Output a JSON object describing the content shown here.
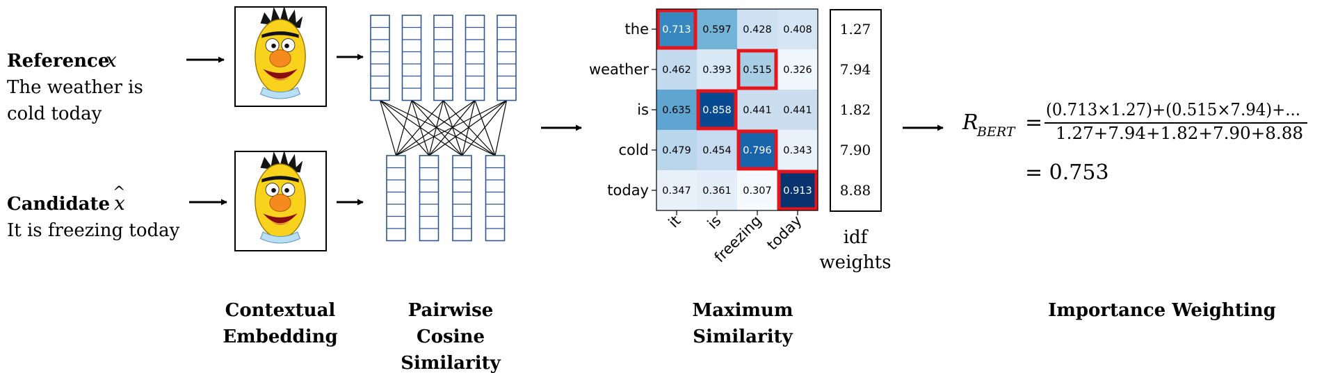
{
  "reference": {
    "heading": "Reference",
    "symbol": "x",
    "lines": [
      "The weather is",
      "cold today"
    ],
    "tokens": [
      "the",
      "weather",
      "is",
      "cold",
      "today"
    ]
  },
  "candidate": {
    "heading": "Candidate",
    "symbol": "x",
    "hat": "^",
    "lines": [
      "It is freezing today"
    ],
    "tokens": [
      "it",
      "is",
      "freezing",
      "today"
    ]
  },
  "similarity": [
    [
      0.713,
      0.597,
      0.428,
      0.408
    ],
    [
      0.462,
      0.393,
      0.515,
      0.326
    ],
    [
      0.635,
      0.858,
      0.441,
      0.441
    ],
    [
      0.479,
      0.454,
      0.796,
      0.343
    ],
    [
      0.347,
      0.361,
      0.307,
      0.913
    ]
  ],
  "max_cells": [
    [
      0,
      0
    ],
    [
      1,
      2
    ],
    [
      2,
      1
    ],
    [
      3,
      2
    ],
    [
      4,
      3
    ]
  ],
  "idf": {
    "values": [
      "1.27",
      "7.94",
      "1.82",
      "7.90",
      "8.88"
    ],
    "label_lines": [
      "idf",
      "weights"
    ]
  },
  "formula": {
    "lhs": "R",
    "lhs_sub": "BERT",
    "equals": "=",
    "numerator": "(0.713×1.27)+(0.515×7.94)+...",
    "denominator": "1.27+7.94+1.82+7.90+8.88",
    "result": "= 0.753"
  },
  "stages": [
    [
      "Contextual",
      "Embedding"
    ],
    [
      "Pairwise",
      "Cosine",
      "Similarity"
    ],
    [
      "Maximum",
      "Similarity"
    ],
    [
      "Importance Weighting"
    ]
  ],
  "colors": {
    "embed_stroke": "#2c5596",
    "highlight": "#e8141c",
    "arrow": "#000000"
  }
}
